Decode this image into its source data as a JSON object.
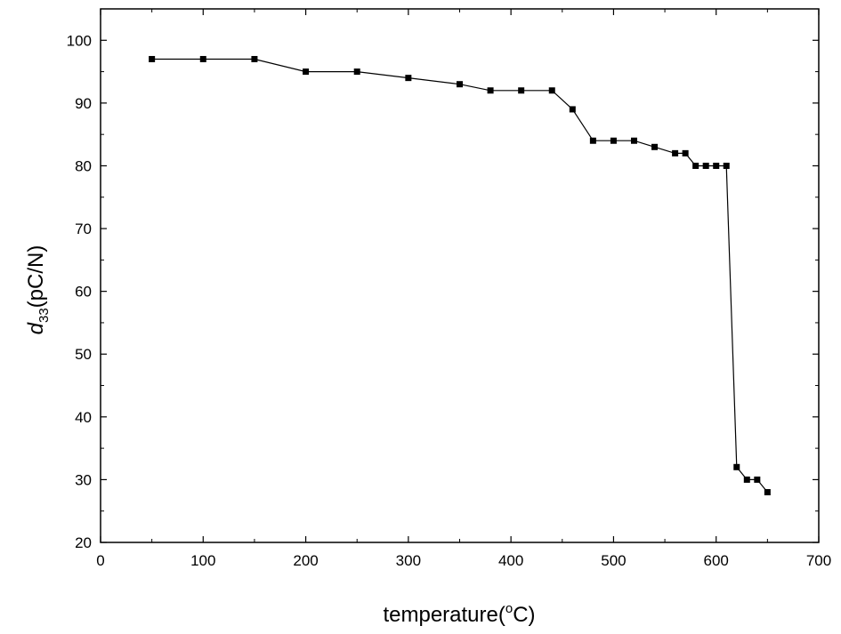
{
  "chart_data": {
    "type": "line",
    "title": "",
    "xlabel": "temperature(",
    "xlabel_degree": "o",
    "xlabel_unit": "C)",
    "ylabel_symbol": "d",
    "ylabel_subscript": "33",
    "ylabel_unit": "(pC/N)",
    "xlim": [
      0,
      700
    ],
    "ylim": [
      20,
      105
    ],
    "x_ticks": [
      0,
      100,
      200,
      300,
      400,
      500,
      600,
      700
    ],
    "y_ticks": [
      20,
      30,
      40,
      50,
      60,
      70,
      80,
      90,
      100
    ],
    "grid": false,
    "legend": "none",
    "marker": "square",
    "color": "#000000",
    "series": [
      {
        "x": [
          50,
          100,
          150,
          200,
          250,
          300,
          350,
          380,
          410,
          440,
          460,
          480,
          500,
          520,
          540,
          560,
          570,
          580,
          590,
          600,
          610,
          620,
          630,
          640,
          650
        ],
        "y": [
          97,
          97,
          97,
          95,
          95,
          94,
          93,
          92,
          92,
          92,
          89,
          84,
          84,
          84,
          83,
          82,
          82,
          80,
          80,
          80,
          80,
          32,
          30,
          30,
          28
        ]
      }
    ]
  }
}
